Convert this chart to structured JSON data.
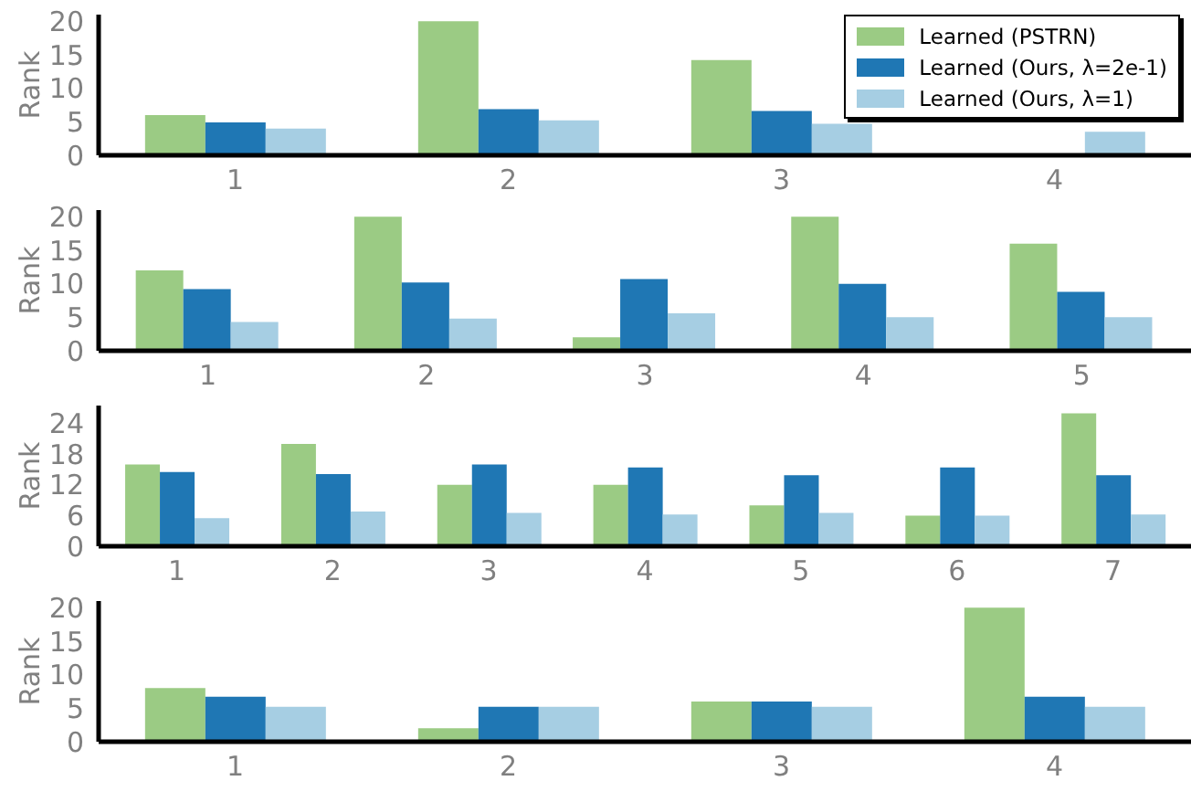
{
  "chart_data": [
    {
      "type": "bar",
      "ylabel": "Rank",
      "categories": [
        "1",
        "2",
        "3",
        "4"
      ],
      "ylim": [
        0,
        21
      ],
      "yticks": [
        0,
        5,
        10,
        15,
        20
      ],
      "legend": "top right",
      "grid": false,
      "series": [
        {
          "name": "Learned (PSTRN)",
          "color": "#9bcb84",
          "values": [
            6,
            20,
            14.2,
            null
          ]
        },
        {
          "name": "Learned (Ours, λ=2e-1)",
          "color": "#1f77b4",
          "values": [
            4.9,
            6.9,
            6.6,
            null
          ]
        },
        {
          "name": "Learned (Ours, λ=1)",
          "color": "#a6cee3",
          "values": [
            4,
            5.2,
            4.7,
            3.5
          ]
        }
      ]
    },
    {
      "type": "bar",
      "ylabel": "Rank",
      "categories": [
        "1",
        "2",
        "3",
        "4",
        "5"
      ],
      "ylim": [
        0,
        21
      ],
      "yticks": [
        0,
        5,
        10,
        15,
        20
      ],
      "grid": false,
      "series": [
        {
          "color": "#9bcb84",
          "values": [
            12,
            20,
            2,
            20,
            16
          ]
        },
        {
          "color": "#1f77b4",
          "values": [
            9.2,
            10.2,
            10.7,
            10,
            8.8
          ]
        },
        {
          "color": "#a6cee3",
          "values": [
            4.3,
            4.8,
            5.6,
            5,
            5
          ]
        }
      ]
    },
    {
      "type": "bar",
      "ylabel": "Rank",
      "categories": [
        "1",
        "2",
        "3",
        "4",
        "5",
        "6",
        "7"
      ],
      "ylim": [
        0,
        27.5
      ],
      "yticks": [
        0,
        6,
        12,
        18,
        24
      ],
      "grid": false,
      "series": [
        {
          "color": "#9bcb84",
          "values": [
            16,
            20,
            12,
            12,
            8,
            6,
            26
          ]
        },
        {
          "color": "#1f77b4",
          "values": [
            14.5,
            14.1,
            16,
            15.4,
            13.9,
            15.4,
            13.9
          ]
        },
        {
          "color": "#a6cee3",
          "values": [
            5.5,
            6.8,
            6.5,
            6.2,
            6.5,
            6,
            6.2
          ]
        }
      ]
    },
    {
      "type": "bar",
      "ylabel": "Rank",
      "categories": [
        "1",
        "2",
        "3",
        "4"
      ],
      "ylim": [
        0,
        21
      ],
      "yticks": [
        0,
        5,
        10,
        15,
        20
      ],
      "grid": false,
      "series": [
        {
          "color": "#9bcb84",
          "values": [
            8,
            2,
            6,
            20
          ]
        },
        {
          "color": "#1f77b4",
          "values": [
            6.7,
            5.2,
            6,
            6.7
          ]
        },
        {
          "color": "#a6cee3",
          "values": [
            5.2,
            5.2,
            5.2,
            5.2
          ]
        }
      ]
    }
  ]
}
